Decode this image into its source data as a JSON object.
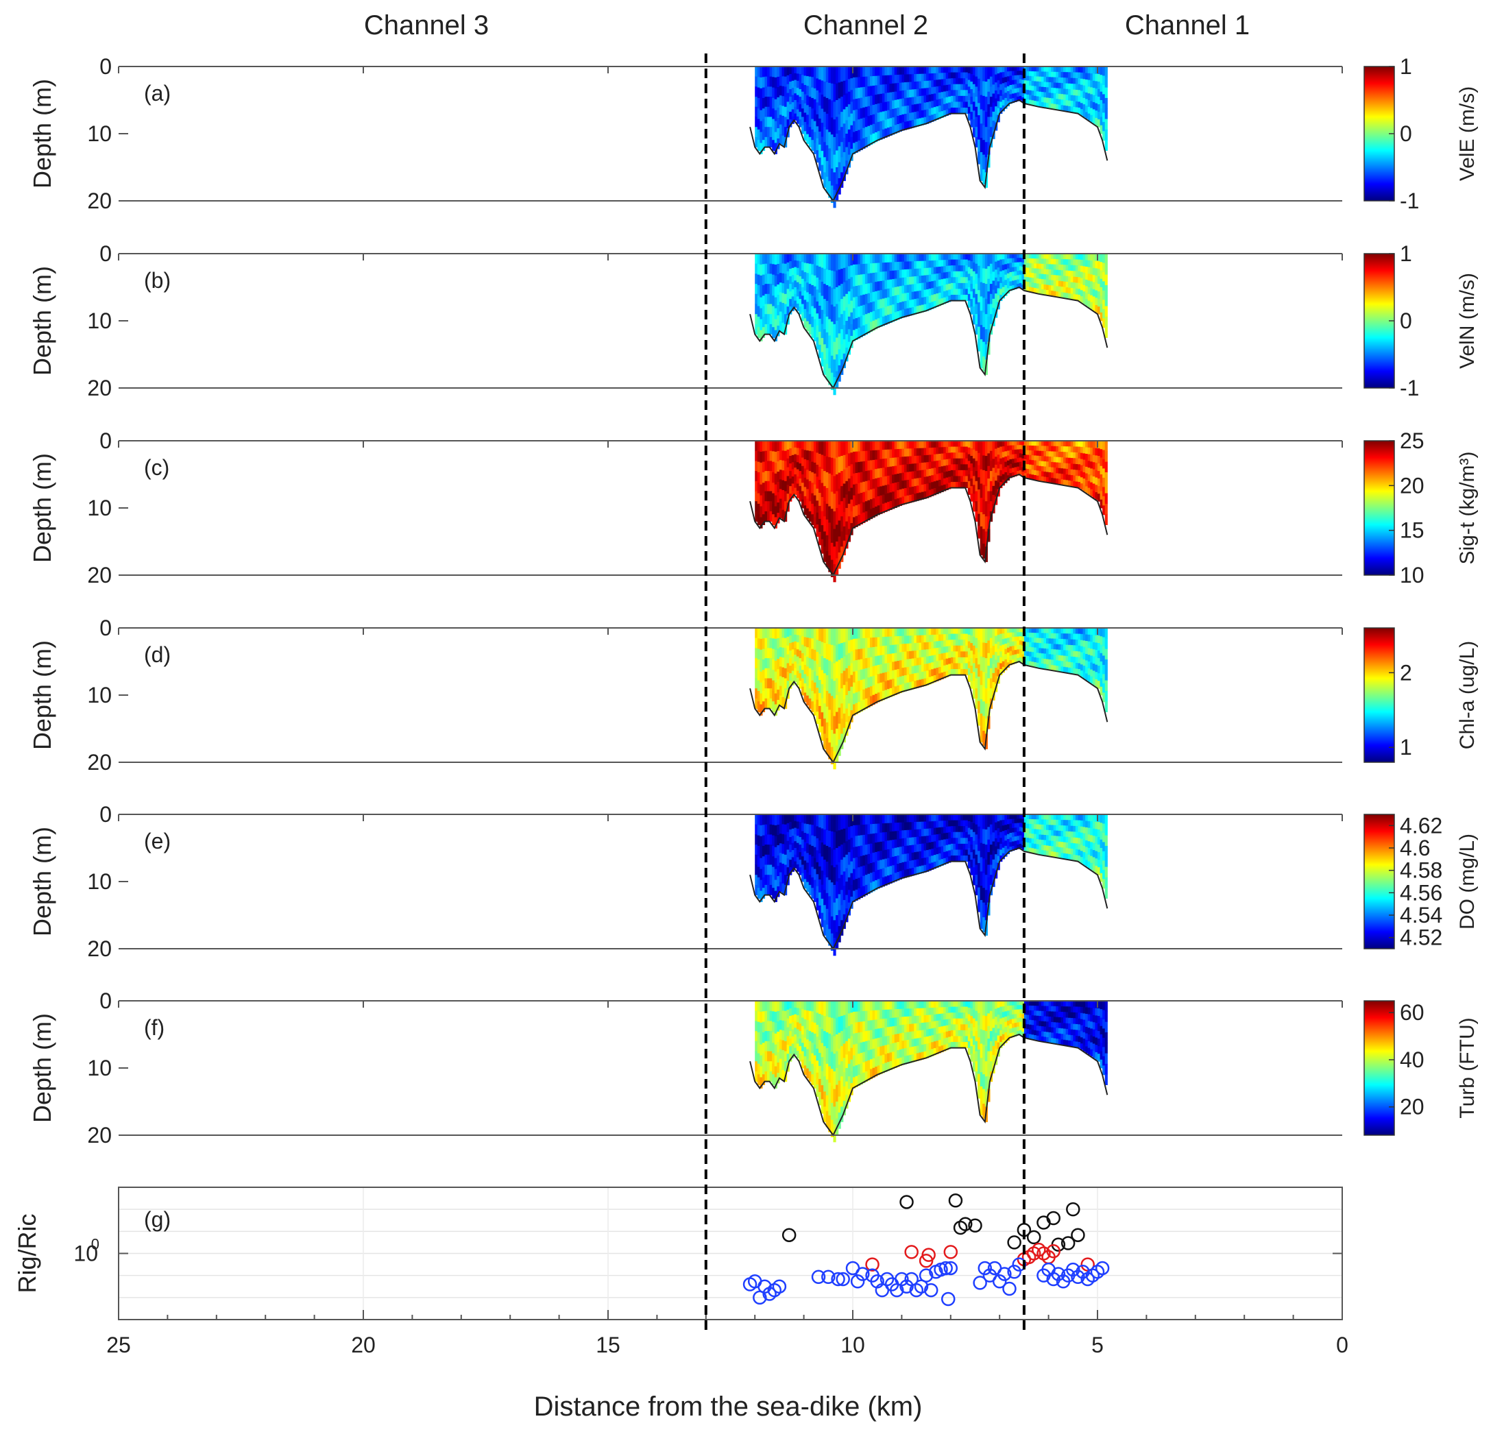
{
  "chart_data": {
    "type": "heatmap",
    "title": "",
    "xlabel": "Distance from the sea-dike (km)",
    "xlim": [
      25,
      0
    ],
    "x_ticks": [
      "25",
      "20",
      "15",
      "10",
      "5",
      "0"
    ],
    "channel_labels": [
      "Channel 3",
      "Channel 2",
      "Channel 1"
    ],
    "channel_boundaries_km": [
      13,
      6.5
    ],
    "data_extent_km": [
      12,
      4.8
    ],
    "bottom_profile": {
      "x_km": [
        12.1,
        12.0,
        11.9,
        11.8,
        11.7,
        11.6,
        11.5,
        11.4,
        11.3,
        11.2,
        11.1,
        11.0,
        10.8,
        10.6,
        10.4,
        10.2,
        10.0,
        9.5,
        9.0,
        8.5,
        8.0,
        7.7,
        7.6,
        7.5,
        7.4,
        7.3,
        7.2,
        7.0,
        6.8,
        6.6,
        6.5,
        6.2,
        5.8,
        5.4,
        5.0,
        4.9,
        4.8
      ],
      "depth_m": [
        9,
        12,
        13,
        12,
        12,
        13,
        11.5,
        12,
        9,
        8,
        9,
        11,
        13,
        18,
        21,
        17,
        13,
        11,
        9.5,
        8.5,
        7,
        7,
        9,
        12,
        17,
        18,
        12,
        7,
        5.5,
        5,
        5.5,
        6,
        6.5,
        7,
        9,
        11,
        14
      ]
    },
    "panels": [
      {
        "label": "(a)",
        "ylabel": "Depth (m)",
        "ylim": [
          20,
          0
        ],
        "y_ticks": [
          "0",
          "10",
          "20"
        ],
        "variable": "VelE (m/s)",
        "clim": [
          -1,
          1
        ],
        "cb_ticks": [
          "1",
          "0",
          "-1"
        ],
        "cb_tick_values": [
          1,
          0,
          -1
        ],
        "field_means": {
          "channel2": -0.6,
          "channel1": -0.35
        }
      },
      {
        "label": "(b)",
        "ylabel": "Depth (m)",
        "ylim": [
          20,
          0
        ],
        "y_ticks": [
          "0",
          "10",
          "20"
        ],
        "variable": "VelN (m/s)",
        "clim": [
          -1,
          1
        ],
        "cb_ticks": [
          "1",
          "0",
          "-1"
        ],
        "cb_tick_values": [
          1,
          0,
          -1
        ],
        "field_means": {
          "channel2": -0.35,
          "channel1": 0.1
        }
      },
      {
        "label": "(c)",
        "ylabel": "Depth (m)",
        "ylim": [
          20,
          0
        ],
        "y_ticks": [
          "0",
          "10",
          "20"
        ],
        "variable": "Sig-t (kg/m³)",
        "clim": [
          10,
          25
        ],
        "cb_ticks": [
          "25",
          "20",
          "15",
          "10"
        ],
        "cb_tick_values": [
          25,
          20,
          15,
          10
        ],
        "field_means": {
          "channel2": 23.5,
          "channel1": 22
        }
      },
      {
        "label": "(d)",
        "ylabel": "Depth (m)",
        "ylim": [
          20,
          0
        ],
        "y_ticks": [
          "0",
          "10",
          "20"
        ],
        "variable": "Chl-a (ug/L)",
        "clim": [
          0.8,
          2.6
        ],
        "cb_ticks": [
          "2",
          "1"
        ],
        "cb_tick_values": [
          2,
          1
        ],
        "field_means": {
          "channel2": 1.9,
          "channel1": 1.5
        }
      },
      {
        "label": "(e)",
        "ylabel": "Depth (m)",
        "ylim": [
          20,
          0
        ],
        "y_ticks": [
          "0",
          "10",
          "20"
        ],
        "variable": "DO (mg/L)",
        "clim": [
          4.51,
          4.63
        ],
        "cb_ticks": [
          "4.62",
          "4.6",
          "4.58",
          "4.56",
          "4.54",
          "4.52"
        ],
        "cb_tick_values": [
          4.62,
          4.6,
          4.58,
          4.56,
          4.54,
          4.52
        ],
        "field_means": {
          "channel2": 4.525,
          "channel1": 4.56
        }
      },
      {
        "label": "(f)",
        "ylabel": "Depth (m)",
        "ylim": [
          20,
          0
        ],
        "y_ticks": [
          "0",
          "10",
          "20"
        ],
        "variable": "Turb (FTU)",
        "clim": [
          8,
          65
        ],
        "cb_ticks": [
          "60",
          "40",
          "20"
        ],
        "cb_tick_values": [
          60,
          40,
          20
        ],
        "field_means": {
          "channel2": 40,
          "channel1": 15
        }
      }
    ],
    "ri_panel": {
      "label": "(g)",
      "ylabel": "Rig/Ric",
      "y_tick_label": "10",
      "y_tick_exponent": "0",
      "ylim_log10": [
        -0.9,
        0.9
      ],
      "series": [
        {
          "name": "black",
          "color": "#111111",
          "points": [
            [
              11.3,
              0.25
            ],
            [
              8.9,
              0.7
            ],
            [
              7.9,
              0.72
            ],
            [
              7.8,
              0.35
            ],
            [
              7.7,
              0.4
            ],
            [
              7.5,
              0.38
            ],
            [
              6.7,
              0.15
            ],
            [
              6.5,
              0.32
            ],
            [
              6.3,
              0.22
            ],
            [
              6.1,
              0.42
            ],
            [
              5.9,
              0.48
            ],
            [
              5.8,
              0.12
            ],
            [
              5.6,
              0.14
            ],
            [
              5.5,
              0.6
            ],
            [
              5.4,
              0.25
            ]
          ]
        },
        {
          "name": "red",
          "color": "#e31a1c",
          "points": [
            [
              9.6,
              -0.15
            ],
            [
              8.8,
              0.02
            ],
            [
              8.5,
              -0.1
            ],
            [
              8.45,
              -0.02
            ],
            [
              8.0,
              0.02
            ],
            [
              6.5,
              -0.08
            ],
            [
              6.4,
              -0.05
            ],
            [
              6.3,
              0.0
            ],
            [
              6.2,
              0.05
            ],
            [
              6.1,
              0.0
            ],
            [
              6.0,
              -0.05
            ],
            [
              5.9,
              0.03
            ],
            [
              5.2,
              -0.15
            ]
          ]
        },
        {
          "name": "blue",
          "color": "#1f3fff",
          "points": [
            [
              12.1,
              -0.42
            ],
            [
              12.0,
              -0.38
            ],
            [
              11.9,
              -0.6
            ],
            [
              11.8,
              -0.45
            ],
            [
              11.7,
              -0.55
            ],
            [
              11.6,
              -0.5
            ],
            [
              11.5,
              -0.45
            ],
            [
              10.7,
              -0.32
            ],
            [
              10.5,
              -0.32
            ],
            [
              10.3,
              -0.35
            ],
            [
              10.2,
              -0.35
            ],
            [
              10.0,
              -0.2
            ],
            [
              9.9,
              -0.38
            ],
            [
              9.8,
              -0.28
            ],
            [
              9.6,
              -0.3
            ],
            [
              9.5,
              -0.38
            ],
            [
              9.4,
              -0.5
            ],
            [
              9.3,
              -0.35
            ],
            [
              9.2,
              -0.42
            ],
            [
              9.1,
              -0.5
            ],
            [
              9.0,
              -0.35
            ],
            [
              8.9,
              -0.45
            ],
            [
              8.8,
              -0.35
            ],
            [
              8.7,
              -0.5
            ],
            [
              8.6,
              -0.45
            ],
            [
              8.5,
              -0.3
            ],
            [
              8.4,
              -0.5
            ],
            [
              8.3,
              -0.25
            ],
            [
              8.2,
              -0.22
            ],
            [
              8.1,
              -0.2
            ],
            [
              8.05,
              -0.62
            ],
            [
              8.0,
              -0.2
            ],
            [
              7.4,
              -0.4
            ],
            [
              7.3,
              -0.2
            ],
            [
              7.2,
              -0.3
            ],
            [
              7.1,
              -0.2
            ],
            [
              7.0,
              -0.38
            ],
            [
              6.9,
              -0.28
            ],
            [
              6.8,
              -0.48
            ],
            [
              6.7,
              -0.25
            ],
            [
              6.6,
              -0.15
            ],
            [
              6.1,
              -0.3
            ],
            [
              6.0,
              -0.22
            ],
            [
              5.9,
              -0.35
            ],
            [
              5.8,
              -0.28
            ],
            [
              5.7,
              -0.38
            ],
            [
              5.6,
              -0.3
            ],
            [
              5.5,
              -0.22
            ],
            [
              5.4,
              -0.32
            ],
            [
              5.3,
              -0.25
            ],
            [
              5.2,
              -0.35
            ],
            [
              5.1,
              -0.3
            ],
            [
              5.0,
              -0.25
            ],
            [
              4.9,
              -0.2
            ]
          ]
        }
      ]
    }
  }
}
